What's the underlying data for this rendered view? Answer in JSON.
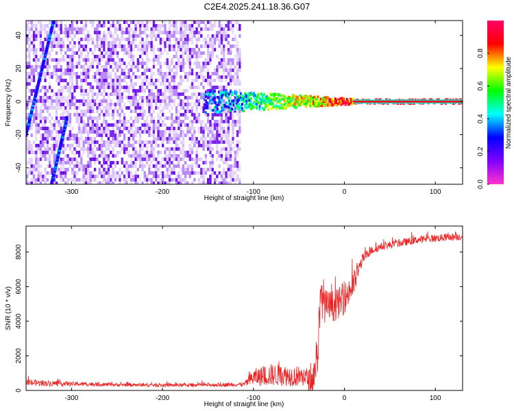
{
  "title": "C2E4.2025.241.18.36.G07",
  "chart_data": [
    {
      "type": "heatmap",
      "xlabel": "Height of straight line (km)",
      "ylabel": "Frequency (Hz)",
      "xlim": [
        -350,
        130
      ],
      "ylim": [
        -50,
        49
      ],
      "xticks": [
        -300,
        -200,
        -100,
        0,
        100
      ],
      "xtick_labels": [
        "-300",
        "-200",
        "-100",
        "0",
        "100"
      ],
      "yticks": [
        -40,
        -20,
        0,
        20,
        40
      ],
      "ytick_labels": [
        "-40",
        "-20",
        "0",
        "20",
        "40"
      ],
      "colorbar": {
        "label": "Normalized spectral amplitude",
        "range": [
          0,
          1
        ],
        "ticks": [
          0.0,
          0.2,
          0.4,
          0.6,
          0.8
        ],
        "tick_labels": [
          "0.0",
          "0.2",
          "0.4",
          "0.6",
          "0.8"
        ],
        "colors": [
          "#ff33cc",
          "#8000ff",
          "#0000ff",
          "#00ffff",
          "#00ff00",
          "#ffff00",
          "#ff0000",
          "#ff0066"
        ]
      },
      "features": {
        "noise_region_x": [
          -350,
          -115
        ],
        "diagonal_tracks": [
          {
            "x": [
              -350,
              -320
            ],
            "y": [
              -20,
              48
            ]
          },
          {
            "x": [
              -322,
              -305
            ],
            "y": [
              -50,
              -10
            ]
          }
        ],
        "carrier_line": {
          "x_start": -155,
          "x_end": 130,
          "frequency": 0,
          "spread_hz_at_start": 6
        }
      }
    },
    {
      "type": "line",
      "xlabel": "Height of straight line (km)",
      "ylabel": "SNR (10 * v/v)",
      "xlim": [
        -350,
        130
      ],
      "ylim": [
        0,
        9500
      ],
      "xticks": [
        -300,
        -200,
        -100,
        0,
        100
      ],
      "xtick_labels": [
        "-300",
        "-200",
        "-100",
        "0",
        "100"
      ],
      "yticks": [
        0,
        2000,
        4000,
        6000,
        8000
      ],
      "ytick_labels": [
        "0",
        "2000",
        "4000",
        "6000",
        "8000"
      ],
      "color": "#ee2222",
      "series": [
        {
          "name": "SNR",
          "x": [
            -350,
            -300,
            -250,
            -200,
            -150,
            -110,
            -100,
            -80,
            -60,
            -45,
            -35,
            -30,
            -25,
            -20,
            -10,
            0,
            10,
            20,
            30,
            40,
            60,
            80,
            100,
            130
          ],
          "y": [
            450,
            380,
            330,
            300,
            320,
            350,
            750,
            900,
            850,
            800,
            500,
            2000,
            5600,
            4800,
            4900,
            5300,
            6100,
            7600,
            8100,
            8300,
            8500,
            8700,
            8800,
            8900
          ],
          "noise": [
            200,
            130,
            100,
            100,
            110,
            120,
            500,
            650,
            600,
            600,
            700,
            1600,
            1400,
            1000,
            900,
            900,
            800,
            300,
            250,
            220,
            220,
            220,
            220,
            220
          ]
        }
      ]
    }
  ]
}
